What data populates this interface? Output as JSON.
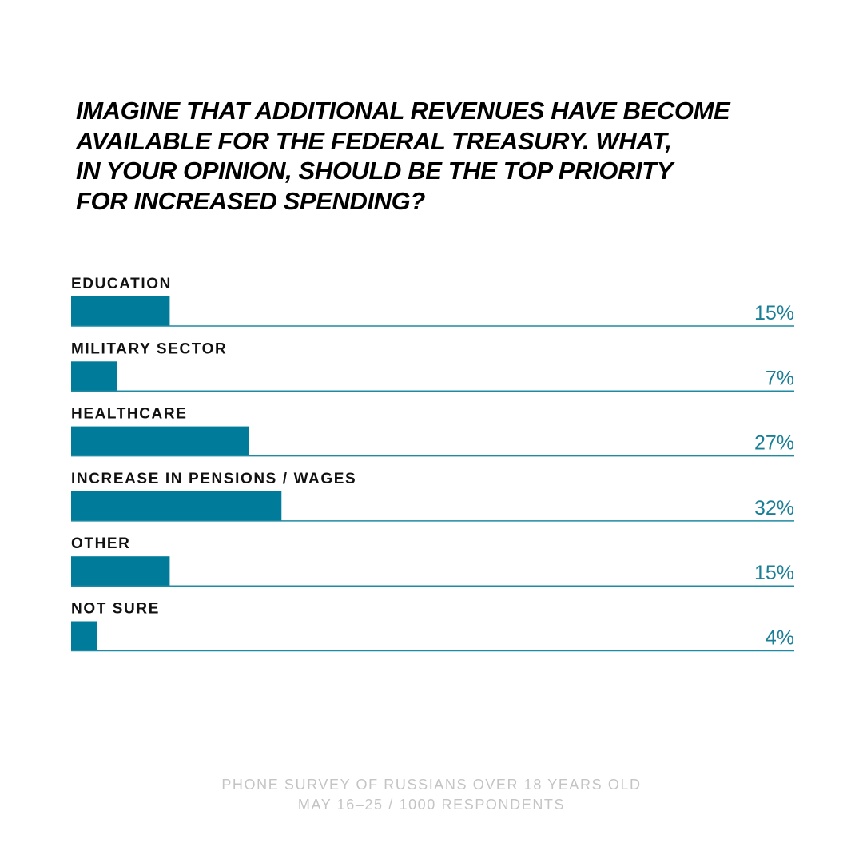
{
  "title_lines": [
    "IMAGINE THAT ADDITIONAL REVENUES HAVE BECOME",
    "AVAILABLE FOR THE FEDERAL TREASURY. WHAT,",
    "IN YOUR OPINION, SHOULD BE THE TOP PRIORITY",
    "FOR INCREASED SPENDING?"
  ],
  "footer_lines": [
    "PHONE SURVEY OF RUSSIANS OVER 18 YEARS OLD",
    "MAY 16–25 / 1000 RESPONDENTS"
  ],
  "colors": {
    "bar": "#007b9a",
    "baseline": "#1f8aa3",
    "value_text": "#1a7f96",
    "label_text": "#111111",
    "footer_text": "#c4c4c4"
  },
  "chart_data": {
    "type": "bar",
    "orientation": "horizontal",
    "title": "IMAGINE THAT ADDITIONAL REVENUES HAVE BECOME AVAILABLE FOR THE FEDERAL TREASURY. WHAT, IN YOUR OPINION, SHOULD BE THE TOP PRIORITY FOR INCREASED SPENDING?",
    "categories": [
      "EDUCATION",
      "MILITARY SECTOR",
      "HEALTHCARE",
      "INCREASE IN PENSIONS / WAGES",
      "OTHER",
      "NOT SURE"
    ],
    "values": [
      15,
      7,
      27,
      32,
      15,
      4
    ],
    "value_labels": [
      "15%",
      "7%",
      "27%",
      "32%",
      "15%",
      "4%"
    ],
    "unit": "%",
    "xlim": [
      0,
      110
    ],
    "grid": false,
    "legend": "none"
  }
}
